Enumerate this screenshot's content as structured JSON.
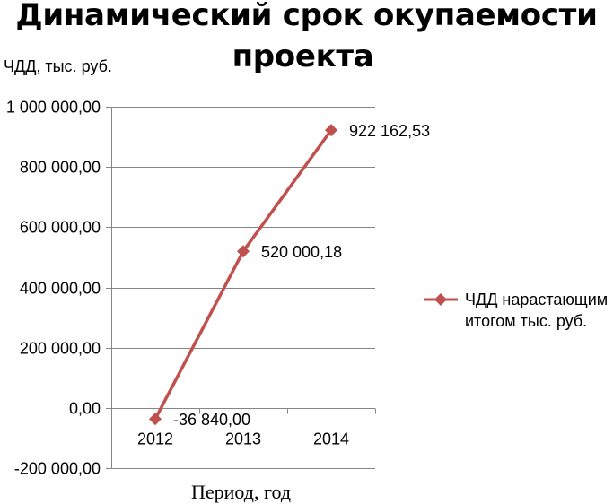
{
  "chart_data": {
    "type": "line",
    "title": [
      "Динамический срок окупаемости",
      "проекта"
    ],
    "ylabel": "ЧДД, тыс. руб.",
    "xlabel": "Период, год",
    "categories": [
      "2012",
      "2013",
      "2014"
    ],
    "ylim": [
      -200000,
      1000000
    ],
    "yticks": [
      -200000,
      0,
      200000,
      400000,
      600000,
      800000,
      1000000
    ],
    "ytick_labels": [
      "-200 000,00",
      "0,00",
      "200 000,00",
      "400 000,00",
      "600 000,00",
      "800 000,00",
      "1 000 000,00"
    ],
    "grid": true,
    "legend_position": "right",
    "series": [
      {
        "name": [
          "ЧДД нарастающим",
          "итогом тыс. руб."
        ],
        "values": [
          -36840.0,
          520000.18,
          922162.53
        ],
        "data_labels": [
          "-36 840,00",
          "520 000,18",
          "922 162,53"
        ],
        "color": "#C0504D",
        "marker": "diamond"
      }
    ]
  }
}
